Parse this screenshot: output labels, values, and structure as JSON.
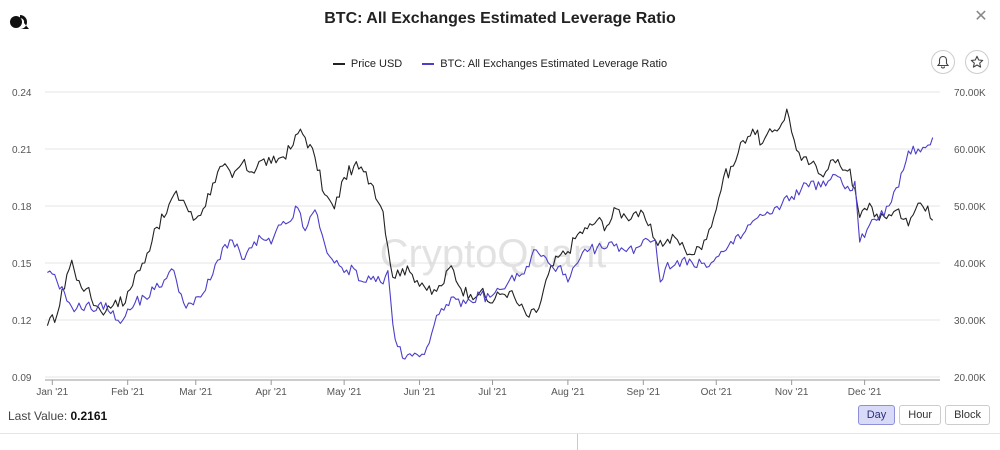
{
  "header": {
    "title": "BTC: All Exchanges Estimated Leverage Ratio",
    "close_glyph": "✕"
  },
  "footer": {
    "last_value_label": "Last Value:",
    "last_value": "0.2161",
    "buttons": [
      "Day",
      "Hour",
      "Block"
    ],
    "active_button": "Day"
  },
  "chart_data": {
    "type": "line",
    "title": "BTC: All Exchanges Estimated Leverage Ratio",
    "watermark": "CryptoQuant",
    "legend": [
      "Price USD",
      "BTC: All Exchanges Estimated Leverage Ratio"
    ],
    "x_labels": [
      "Jan '21",
      "Feb '21",
      "Mar '21",
      "Apr '21",
      "May '21",
      "Jun '21",
      "Jul '21",
      "Aug '21",
      "Sep '21",
      "Oct '21",
      "Nov '21",
      "Dec '21"
    ],
    "x_label_days": [
      0,
      31,
      59,
      90,
      120,
      151,
      181,
      212,
      243,
      273,
      304,
      334
    ],
    "x_range_days": [
      -3,
      365
    ],
    "y_left": {
      "ticks": [
        "0.24",
        "0.21",
        "0.18",
        "0.15",
        "0.12",
        "0.09"
      ],
      "range": [
        0.09,
        0.24
      ]
    },
    "y_right": {
      "ticks": [
        "70.00K",
        "60.00K",
        "50.00K",
        "40.00K",
        "30.00K",
        "20.00K"
      ],
      "range": [
        20000,
        70000
      ]
    },
    "series": [
      {
        "name": "Price USD",
        "axis": "right",
        "color": "#222222",
        "points": [
          [
            -2,
            29000
          ],
          [
            2,
            31000
          ],
          [
            6,
            38000
          ],
          [
            8,
            40500
          ],
          [
            10,
            37000
          ],
          [
            14,
            35500
          ],
          [
            18,
            32500
          ],
          [
            22,
            31500
          ],
          [
            26,
            33500
          ],
          [
            30,
            33000
          ],
          [
            34,
            38000
          ],
          [
            38,
            40000
          ],
          [
            42,
            46000
          ],
          [
            46,
            48000
          ],
          [
            50,
            52000
          ],
          [
            54,
            51000
          ],
          [
            58,
            47500
          ],
          [
            62,
            49500
          ],
          [
            66,
            54000
          ],
          [
            70,
            57000
          ],
          [
            74,
            55000
          ],
          [
            78,
            57500
          ],
          [
            82,
            56000
          ],
          [
            86,
            58000
          ],
          [
            90,
            57500
          ],
          [
            94,
            58500
          ],
          [
            98,
            60000
          ],
          [
            102,
            63500
          ],
          [
            104,
            62000
          ],
          [
            108,
            58500
          ],
          [
            112,
            52000
          ],
          [
            116,
            49500
          ],
          [
            120,
            55000
          ],
          [
            124,
            57000
          ],
          [
            128,
            56000
          ],
          [
            132,
            53500
          ],
          [
            136,
            49000
          ],
          [
            140,
            37500
          ],
          [
            144,
            39000
          ],
          [
            148,
            38000
          ],
          [
            152,
            36500
          ],
          [
            156,
            34500
          ],
          [
            160,
            36000
          ],
          [
            164,
            39500
          ],
          [
            168,
            35500
          ],
          [
            172,
            34500
          ],
          [
            176,
            35000
          ],
          [
            180,
            33000
          ],
          [
            184,
            34500
          ],
          [
            188,
            35000
          ],
          [
            192,
            32500
          ],
          [
            196,
            30500
          ],
          [
            200,
            32000
          ],
          [
            204,
            38000
          ],
          [
            208,
            41000
          ],
          [
            212,
            42000
          ],
          [
            216,
            45000
          ],
          [
            220,
            46000
          ],
          [
            224,
            47500
          ],
          [
            228,
            46500
          ],
          [
            232,
            49500
          ],
          [
            236,
            48000
          ],
          [
            240,
            49000
          ],
          [
            244,
            47500
          ],
          [
            248,
            44000
          ],
          [
            252,
            43500
          ],
          [
            256,
            44500
          ],
          [
            260,
            42500
          ],
          [
            264,
            41500
          ],
          [
            268,
            44000
          ],
          [
            272,
            48000
          ],
          [
            276,
            55000
          ],
          [
            280,
            57000
          ],
          [
            284,
            61500
          ],
          [
            288,
            63500
          ],
          [
            292,
            61000
          ],
          [
            296,
            63000
          ],
          [
            300,
            64500
          ],
          [
            302,
            67000
          ],
          [
            304,
            63000
          ],
          [
            308,
            58000
          ],
          [
            312,
            57500
          ],
          [
            316,
            55500
          ],
          [
            320,
            58000
          ],
          [
            324,
            57000
          ],
          [
            328,
            56500
          ],
          [
            332,
            48000
          ],
          [
            336,
            50500
          ],
          [
            340,
            47500
          ],
          [
            344,
            48500
          ],
          [
            348,
            49500
          ],
          [
            352,
            46500
          ],
          [
            356,
            50500
          ],
          [
            360,
            50000
          ],
          [
            362,
            47500
          ]
        ]
      },
      {
        "name": "BTC: All Exchanges Estimated Leverage Ratio",
        "axis": "left",
        "color": "#4b3ec9",
        "points": [
          [
            -2,
            0.145
          ],
          [
            2,
            0.14
          ],
          [
            6,
            0.13
          ],
          [
            10,
            0.126
          ],
          [
            14,
            0.128
          ],
          [
            18,
            0.125
          ],
          [
            22,
            0.129
          ],
          [
            26,
            0.12
          ],
          [
            30,
            0.122
          ],
          [
            34,
            0.129
          ],
          [
            38,
            0.132
          ],
          [
            42,
            0.136
          ],
          [
            46,
            0.141
          ],
          [
            50,
            0.146
          ],
          [
            54,
            0.129
          ],
          [
            58,
            0.128
          ],
          [
            62,
            0.134
          ],
          [
            66,
            0.144
          ],
          [
            70,
            0.158
          ],
          [
            74,
            0.162
          ],
          [
            78,
            0.152
          ],
          [
            82,
            0.158
          ],
          [
            86,
            0.163
          ],
          [
            90,
            0.16
          ],
          [
            94,
            0.17
          ],
          [
            98,
            0.172
          ],
          [
            100,
            0.18
          ],
          [
            104,
            0.167
          ],
          [
            108,
            0.178
          ],
          [
            112,
            0.16
          ],
          [
            116,
            0.15
          ],
          [
            120,
            0.145
          ],
          [
            124,
            0.147
          ],
          [
            128,
            0.14
          ],
          [
            132,
            0.143
          ],
          [
            136,
            0.139
          ],
          [
            138,
            0.146
          ],
          [
            140,
            0.118
          ],
          [
            142,
            0.106
          ],
          [
            144,
            0.1
          ],
          [
            148,
            0.101
          ],
          [
            152,
            0.102
          ],
          [
            156,
            0.113
          ],
          [
            160,
            0.126
          ],
          [
            164,
            0.132
          ],
          [
            168,
            0.127
          ],
          [
            172,
            0.13
          ],
          [
            176,
            0.133
          ],
          [
            180,
            0.132
          ],
          [
            184,
            0.136
          ],
          [
            188,
            0.141
          ],
          [
            192,
            0.143
          ],
          [
            196,
            0.148
          ],
          [
            198,
            0.157
          ],
          [
            200,
            0.155
          ],
          [
            204,
            0.15
          ],
          [
            208,
            0.148
          ],
          [
            212,
            0.14
          ],
          [
            216,
            0.15
          ],
          [
            220,
            0.156
          ],
          [
            224,
            0.158
          ],
          [
            228,
            0.158
          ],
          [
            232,
            0.16
          ],
          [
            236,
            0.156
          ],
          [
            240,
            0.158
          ],
          [
            244,
            0.163
          ],
          [
            248,
            0.162
          ],
          [
            250,
            0.14
          ],
          [
            252,
            0.147
          ],
          [
            256,
            0.149
          ],
          [
            260,
            0.153
          ],
          [
            264,
            0.148
          ],
          [
            268,
            0.15
          ],
          [
            272,
            0.151
          ],
          [
            276,
            0.156
          ],
          [
            280,
            0.16
          ],
          [
            284,
            0.165
          ],
          [
            288,
            0.172
          ],
          [
            292,
            0.175
          ],
          [
            296,
            0.176
          ],
          [
            300,
            0.181
          ],
          [
            304,
            0.185
          ],
          [
            308,
            0.189
          ],
          [
            312,
            0.193
          ],
          [
            316,
            0.19
          ],
          [
            320,
            0.194
          ],
          [
            324,
            0.195
          ],
          [
            328,
            0.188
          ],
          [
            330,
            0.193
          ],
          [
            332,
            0.161
          ],
          [
            336,
            0.17
          ],
          [
            340,
            0.174
          ],
          [
            344,
            0.18
          ],
          [
            348,
            0.19
          ],
          [
            350,
            0.199
          ],
          [
            352,
            0.209
          ],
          [
            356,
            0.21
          ],
          [
            360,
            0.212
          ],
          [
            362,
            0.216
          ]
        ]
      }
    ]
  }
}
